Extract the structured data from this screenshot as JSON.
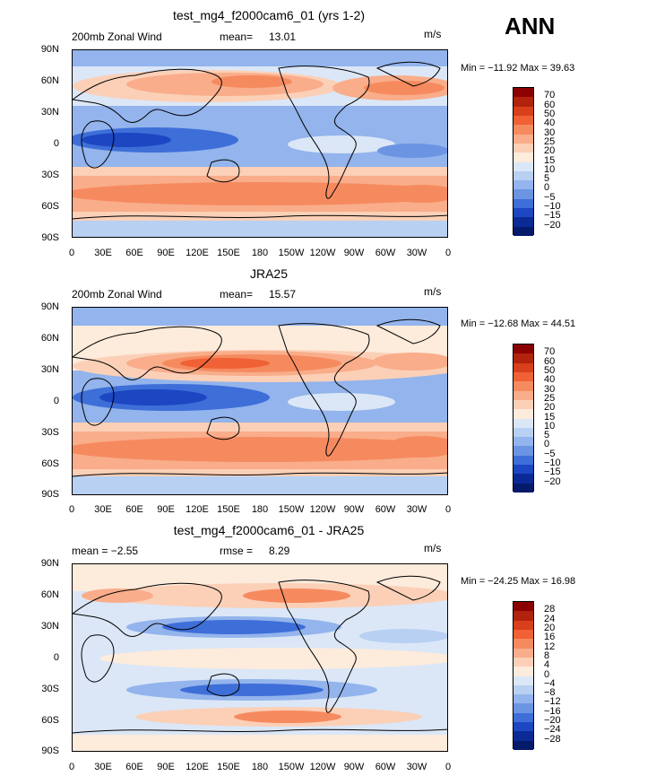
{
  "season": "ANN",
  "lat_labels": [
    "90N",
    "60N",
    "30N",
    "0",
    "30S",
    "60S",
    "90S"
  ],
  "lon_labels": [
    "0",
    "30E",
    "60E",
    "90E",
    "120E",
    "150E",
    "180",
    "150W",
    "120W",
    "90W",
    "60W",
    "30W",
    "0"
  ],
  "panels": [
    {
      "title": "test_mg4_f2000cam6_01 (yrs 1-2)",
      "left_label": "200mb Zonal Wind",
      "mid_label": "mean=",
      "mid_value": "13.01",
      "units": "m/s",
      "minmax": "Min = −11.92  Max =  39.63",
      "colorbar_labels": [
        "70",
        "60",
        "50",
        "40",
        "30",
        "25",
        "20",
        "15",
        "10",
        "5",
        "0",
        "−5",
        "−10",
        "−15",
        "−20"
      ]
    },
    {
      "title": "JRA25",
      "left_label": "200mb Zonal Wind",
      "mid_label": "mean=",
      "mid_value": "15.57",
      "units": "m/s",
      "minmax": "Min = −12.68  Max =  44.51",
      "colorbar_labels": [
        "70",
        "60",
        "50",
        "40",
        "30",
        "25",
        "20",
        "15",
        "10",
        "5",
        "0",
        "−5",
        "−10",
        "−15",
        "−20"
      ]
    },
    {
      "title": "test_mg4_f2000cam6_01 - JRA25",
      "left_label": "mean =  −2.55",
      "mid_label": "rmse =",
      "mid_value": "8.29",
      "units": "m/s",
      "minmax": "Min = −24.25  Max =  16.98",
      "colorbar_labels": [
        "28",
        "24",
        "20",
        "16",
        "12",
        "8",
        "4",
        "0",
        "−4",
        "−8",
        "−12",
        "−16",
        "−20",
        "−24",
        "−28"
      ]
    }
  ],
  "colors": {
    "abs_scale": [
      "#8b0000",
      "#b2230e",
      "#d7401a",
      "#f06135",
      "#f68a5f",
      "#f9ad8a",
      "#fbd0b7",
      "#fdebdc",
      "#dbe7f7",
      "#b8d0f2",
      "#93b4ec",
      "#6b94e3",
      "#3e6ed8",
      "#1c46c2",
      "#0b2a96",
      "#061a6b"
    ],
    "diff_scale": [
      "#8b0000",
      "#b2230e",
      "#d7401a",
      "#f06135",
      "#f68a5f",
      "#f9ad8a",
      "#fbd0b7",
      "#fdebdc",
      "#dbe7f7",
      "#b8d0f2",
      "#93b4ec",
      "#6b94e3",
      "#3e6ed8",
      "#1c46c2",
      "#0b2a96",
      "#061a6b"
    ]
  }
}
